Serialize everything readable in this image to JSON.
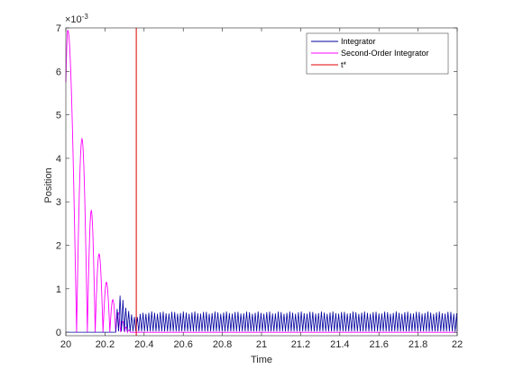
{
  "chart_data": {
    "type": "line",
    "title": "",
    "xlabel": "Time",
    "ylabel": "Position",
    "xlim": [
      20,
      22
    ],
    "ylim": [
      0,
      7
    ],
    "y_exponent_label": "×10",
    "y_exponent_power": "-3",
    "x_ticks": [
      "20",
      "20.2",
      "20.4",
      "20.6",
      "20.8",
      "21",
      "21.2",
      "21.4",
      "21.6",
      "21.8",
      "22"
    ],
    "x_tick_values": [
      20,
      20.2,
      20.4,
      20.6,
      20.8,
      21,
      21.2,
      21.4,
      21.6,
      21.8,
      22
    ],
    "y_ticks": [
      "0",
      "1",
      "2",
      "3",
      "4",
      "5",
      "6",
      "7"
    ],
    "y_tick_values": [
      0,
      1,
      2,
      3,
      4,
      5,
      6,
      7
    ],
    "grid": false,
    "legend_position": "top-right",
    "series": [
      {
        "name": "Integrator",
        "color": "#0000a0",
        "style": "oscillation",
        "x": [
          20.0,
          20.27,
          20.28,
          20.3,
          20.33,
          20.36,
          20.4,
          20.6,
          20.8,
          21.0,
          21.2,
          21.4,
          21.6,
          21.8,
          22.0
        ],
        "peaks": [
          0.0,
          0.55,
          0.9,
          0.65,
          0.4,
          0.35,
          0.45,
          0.45,
          0.45,
          0.45,
          0.45,
          0.45,
          0.45,
          0.45,
          0.45
        ],
        "period": 0.0147
      },
      {
        "name": "Second-Order Integrator",
        "color": "#ff00ff",
        "style": "bounces",
        "bounces": [
          {
            "start": 20.0,
            "end": 20.055,
            "peak": 6.95
          },
          {
            "start": 20.055,
            "end": 20.11,
            "peak": 4.45
          },
          {
            "start": 20.11,
            "end": 20.15,
            "peak": 2.8
          },
          {
            "start": 20.15,
            "end": 20.19,
            "peak": 1.8
          },
          {
            "start": 20.19,
            "end": 20.225,
            "peak": 1.15
          },
          {
            "start": 20.225,
            "end": 20.255,
            "peak": 0.75
          },
          {
            "start": 20.255,
            "end": 20.28,
            "peak": 0.45
          },
          {
            "start": 20.28,
            "end": 20.3,
            "peak": 0.25
          },
          {
            "start": 20.3,
            "end": 20.315,
            "peak": 0.12
          },
          {
            "start": 20.315,
            "end": 20.33,
            "peak": 0.05
          }
        ],
        "initial_value": 5.75
      },
      {
        "name": "t*",
        "color": "#e00000",
        "style": "vertical",
        "x": 20.36
      }
    ]
  }
}
